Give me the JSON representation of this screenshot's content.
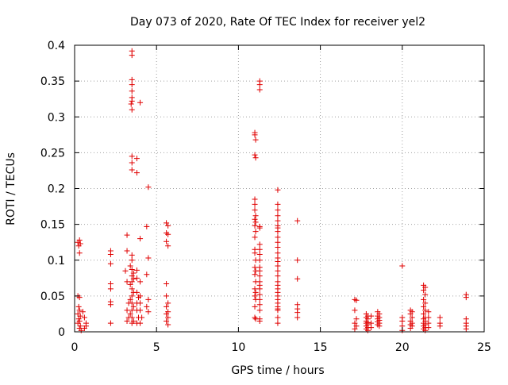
{
  "chart_data": {
    "type": "scatter",
    "title": "Day 073 of 2020, Rate Of TEC Index for receiver yel2",
    "xlabel": "GPS time / hours",
    "ylabel": "ROTI / TECUs",
    "xlim": [
      0,
      25
    ],
    "ylim": [
      0,
      0.4
    ],
    "grid": true,
    "marker": "+",
    "color": "#e00000",
    "x_ticks": [
      0,
      5,
      10,
      15,
      20,
      25
    ],
    "x_tick_labels": [
      "0",
      "5",
      "10",
      "15",
      "20",
      "25"
    ],
    "y_ticks": [
      0,
      0.05,
      0.1,
      0.15,
      0.2,
      0.25,
      0.3,
      0.35,
      0.4
    ],
    "y_tick_labels": [
      "0",
      "0.05",
      "0.1",
      "0.15",
      "0.2",
      "0.25",
      "0.3",
      "0.35",
      "0.4"
    ],
    "series": [
      {
        "name": "ROTI",
        "points": [
          [
            0.2,
            0.125
          ],
          [
            0.25,
            0.12
          ],
          [
            0.3,
            0.128
          ],
          [
            0.35,
            0.123
          ],
          [
            0.3,
            0.11
          ],
          [
            0.2,
            0.05
          ],
          [
            0.3,
            0.048
          ],
          [
            0.25,
            0.035
          ],
          [
            0.3,
            0.03
          ],
          [
            0.2,
            0.025
          ],
          [
            0.35,
            0.022
          ],
          [
            0.25,
            0.018
          ],
          [
            0.3,
            0.015
          ],
          [
            0.2,
            0.012
          ],
          [
            0.35,
            0.008
          ],
          [
            0.3,
            0.005
          ],
          [
            0.4,
            0.002
          ],
          [
            0.5,
            0.028
          ],
          [
            0.6,
            0.02
          ],
          [
            0.7,
            0.012
          ],
          [
            0.6,
            0.005
          ],
          [
            0.7,
            0.008
          ],
          [
            2.2,
            0.113
          ],
          [
            2.2,
            0.108
          ],
          [
            2.2,
            0.095
          ],
          [
            2.2,
            0.067
          ],
          [
            2.2,
            0.06
          ],
          [
            2.2,
            0.042
          ],
          [
            2.2,
            0.038
          ],
          [
            2.2,
            0.012
          ],
          [
            3.2,
            0.135
          ],
          [
            3.2,
            0.113
          ],
          [
            3.1,
            0.085
          ],
          [
            3.2,
            0.07
          ],
          [
            3.3,
            0.04
          ],
          [
            3.2,
            0.03
          ],
          [
            3.3,
            0.02
          ],
          [
            3.2,
            0.015
          ],
          [
            3.5,
            0.392
          ],
          [
            3.5,
            0.386
          ],
          [
            3.5,
            0.352
          ],
          [
            3.5,
            0.345
          ],
          [
            3.5,
            0.336
          ],
          [
            3.5,
            0.327
          ],
          [
            3.5,
            0.322
          ],
          [
            3.45,
            0.318
          ],
          [
            3.5,
            0.31
          ],
          [
            3.5,
            0.245
          ],
          [
            3.5,
            0.236
          ],
          [
            3.5,
            0.226
          ],
          [
            3.5,
            0.107
          ],
          [
            3.5,
            0.1
          ],
          [
            3.4,
            0.092
          ],
          [
            3.5,
            0.087
          ],
          [
            3.6,
            0.082
          ],
          [
            3.5,
            0.078
          ],
          [
            3.6,
            0.074
          ],
          [
            3.5,
            0.07
          ],
          [
            3.4,
            0.066
          ],
          [
            3.5,
            0.06
          ],
          [
            3.6,
            0.055
          ],
          [
            3.5,
            0.05
          ],
          [
            3.4,
            0.045
          ],
          [
            3.5,
            0.04
          ],
          [
            3.6,
            0.035
          ],
          [
            3.5,
            0.03
          ],
          [
            3.4,
            0.025
          ],
          [
            3.5,
            0.02
          ],
          [
            3.6,
            0.015
          ],
          [
            3.5,
            0.012
          ],
          [
            3.8,
            0.242
          ],
          [
            3.8,
            0.222
          ],
          [
            3.8,
            0.086
          ],
          [
            3.8,
            0.075
          ],
          [
            3.8,
            0.055
          ],
          [
            3.9,
            0.048
          ],
          [
            3.8,
            0.04
          ],
          [
            3.8,
            0.03
          ],
          [
            3.9,
            0.02
          ],
          [
            3.8,
            0.012
          ],
          [
            4.0,
            0.32
          ],
          [
            4.0,
            0.13
          ],
          [
            4.0,
            0.07
          ],
          [
            4.0,
            0.05
          ],
          [
            4.0,
            0.04
          ],
          [
            4.0,
            0.03
          ],
          [
            4.1,
            0.02
          ],
          [
            4.0,
            0.012
          ],
          [
            4.5,
            0.202
          ],
          [
            4.4,
            0.147
          ],
          [
            4.5,
            0.103
          ],
          [
            4.4,
            0.08
          ],
          [
            4.5,
            0.045
          ],
          [
            4.4,
            0.035
          ],
          [
            4.5,
            0.028
          ],
          [
            5.6,
            0.152
          ],
          [
            5.7,
            0.148
          ],
          [
            5.6,
            0.138
          ],
          [
            5.7,
            0.136
          ],
          [
            5.6,
            0.126
          ],
          [
            5.7,
            0.12
          ],
          [
            5.6,
            0.067
          ],
          [
            5.6,
            0.05
          ],
          [
            5.7,
            0.04
          ],
          [
            5.6,
            0.035
          ],
          [
            5.7,
            0.028
          ],
          [
            5.6,
            0.025
          ],
          [
            5.7,
            0.02
          ],
          [
            5.6,
            0.015
          ],
          [
            5.7,
            0.01
          ],
          [
            11.0,
            0.278
          ],
          [
            11.0,
            0.275
          ],
          [
            11.05,
            0.268
          ],
          [
            11.0,
            0.247
          ],
          [
            11.05,
            0.243
          ],
          [
            11.0,
            0.185
          ],
          [
            11.0,
            0.178
          ],
          [
            11.0,
            0.17
          ],
          [
            11.05,
            0.162
          ],
          [
            11.0,
            0.157
          ],
          [
            11.05,
            0.153
          ],
          [
            11.0,
            0.148
          ],
          [
            11.05,
            0.14
          ],
          [
            11.0,
            0.132
          ],
          [
            11.0,
            0.115
          ],
          [
            11.0,
            0.11
          ],
          [
            11.05,
            0.1
          ],
          [
            11.0,
            0.09
          ],
          [
            11.05,
            0.085
          ],
          [
            11.0,
            0.08
          ],
          [
            11.05,
            0.07
          ],
          [
            11.0,
            0.06
          ],
          [
            11.05,
            0.055
          ],
          [
            11.0,
            0.05
          ],
          [
            11.05,
            0.045
          ],
          [
            11.0,
            0.035
          ],
          [
            11.0,
            0.02
          ],
          [
            11.05,
            0.018
          ],
          [
            11.3,
            0.35
          ],
          [
            11.3,
            0.345
          ],
          [
            11.3,
            0.338
          ],
          [
            11.3,
            0.147
          ],
          [
            11.3,
            0.145
          ],
          [
            11.3,
            0.122
          ],
          [
            11.3,
            0.115
          ],
          [
            11.3,
            0.108
          ],
          [
            11.3,
            0.1
          ],
          [
            11.3,
            0.09
          ],
          [
            11.3,
            0.085
          ],
          [
            11.3,
            0.078
          ],
          [
            11.3,
            0.07
          ],
          [
            11.3,
            0.065
          ],
          [
            11.3,
            0.06
          ],
          [
            11.3,
            0.052
          ],
          [
            11.3,
            0.045
          ],
          [
            11.3,
            0.038
          ],
          [
            11.3,
            0.03
          ],
          [
            11.3,
            0.018
          ],
          [
            11.3,
            0.015
          ],
          [
            12.4,
            0.198
          ],
          [
            12.4,
            0.178
          ],
          [
            12.4,
            0.17
          ],
          [
            12.4,
            0.162
          ],
          [
            12.4,
            0.155
          ],
          [
            12.4,
            0.148
          ],
          [
            12.4,
            0.145
          ],
          [
            12.4,
            0.14
          ],
          [
            12.4,
            0.132
          ],
          [
            12.4,
            0.125
          ],
          [
            12.4,
            0.118
          ],
          [
            12.4,
            0.11
          ],
          [
            12.4,
            0.103
          ],
          [
            12.4,
            0.098
          ],
          [
            12.4,
            0.092
          ],
          [
            12.4,
            0.085
          ],
          [
            12.4,
            0.078
          ],
          [
            12.4,
            0.07
          ],
          [
            12.4,
            0.065
          ],
          [
            12.4,
            0.06
          ],
          [
            12.4,
            0.055
          ],
          [
            12.4,
            0.05
          ],
          [
            12.4,
            0.045
          ],
          [
            12.4,
            0.04
          ],
          [
            12.4,
            0.035
          ],
          [
            12.4,
            0.032
          ],
          [
            12.4,
            0.03
          ],
          [
            12.4,
            0.02
          ],
          [
            12.4,
            0.012
          ],
          [
            13.6,
            0.155
          ],
          [
            13.6,
            0.1
          ],
          [
            13.6,
            0.074
          ],
          [
            13.6,
            0.038
          ],
          [
            13.6,
            0.032
          ],
          [
            13.6,
            0.027
          ],
          [
            13.6,
            0.02
          ],
          [
            17.1,
            0.045
          ],
          [
            17.2,
            0.044
          ],
          [
            17.1,
            0.03
          ],
          [
            17.2,
            0.018
          ],
          [
            17.1,
            0.012
          ],
          [
            17.2,
            0.008
          ],
          [
            17.1,
            0.004
          ],
          [
            17.8,
            0.025
          ],
          [
            17.9,
            0.022
          ],
          [
            17.8,
            0.02
          ],
          [
            17.9,
            0.018
          ],
          [
            17.8,
            0.015
          ],
          [
            17.9,
            0.013
          ],
          [
            17.8,
            0.012
          ],
          [
            17.9,
            0.01
          ],
          [
            17.8,
            0.008
          ],
          [
            17.9,
            0.006
          ],
          [
            17.8,
            0.004
          ],
          [
            17.9,
            0.002
          ],
          [
            18.1,
            0.022
          ],
          [
            18.1,
            0.012
          ],
          [
            18.1,
            0.006
          ],
          [
            18.5,
            0.028
          ],
          [
            18.6,
            0.025
          ],
          [
            18.5,
            0.022
          ],
          [
            18.6,
            0.02
          ],
          [
            18.5,
            0.018
          ],
          [
            18.6,
            0.016
          ],
          [
            18.5,
            0.014
          ],
          [
            18.6,
            0.012
          ],
          [
            18.5,
            0.01
          ],
          [
            18.6,
            0.008
          ],
          [
            20.0,
            0.092
          ],
          [
            20.0,
            0.02
          ],
          [
            20.0,
            0.015
          ],
          [
            20.0,
            0.008
          ],
          [
            20.0,
            0.002
          ],
          [
            20.5,
            0.03
          ],
          [
            20.6,
            0.028
          ],
          [
            20.5,
            0.025
          ],
          [
            20.6,
            0.02
          ],
          [
            20.5,
            0.015
          ],
          [
            20.6,
            0.012
          ],
          [
            20.5,
            0.01
          ],
          [
            20.6,
            0.008
          ],
          [
            20.5,
            0.005
          ],
          [
            21.3,
            0.065
          ],
          [
            21.4,
            0.062
          ],
          [
            21.3,
            0.058
          ],
          [
            21.4,
            0.052
          ],
          [
            21.3,
            0.045
          ],
          [
            21.4,
            0.04
          ],
          [
            21.3,
            0.035
          ],
          [
            21.4,
            0.03
          ],
          [
            21.3,
            0.025
          ],
          [
            21.4,
            0.02
          ],
          [
            21.3,
            0.018
          ],
          [
            21.4,
            0.015
          ],
          [
            21.3,
            0.012
          ],
          [
            21.4,
            0.01
          ],
          [
            21.3,
            0.008
          ],
          [
            21.4,
            0.006
          ],
          [
            21.3,
            0.004
          ],
          [
            21.4,
            0.002
          ],
          [
            21.6,
            0.028
          ],
          [
            21.6,
            0.02
          ],
          [
            21.6,
            0.012
          ],
          [
            21.6,
            0.006
          ],
          [
            22.3,
            0.02
          ],
          [
            22.3,
            0.012
          ],
          [
            22.3,
            0.008
          ],
          [
            23.9,
            0.052
          ],
          [
            23.9,
            0.048
          ],
          [
            23.9,
            0.018
          ],
          [
            23.9,
            0.012
          ],
          [
            23.9,
            0.008
          ],
          [
            23.9,
            0.004
          ]
        ]
      }
    ]
  }
}
